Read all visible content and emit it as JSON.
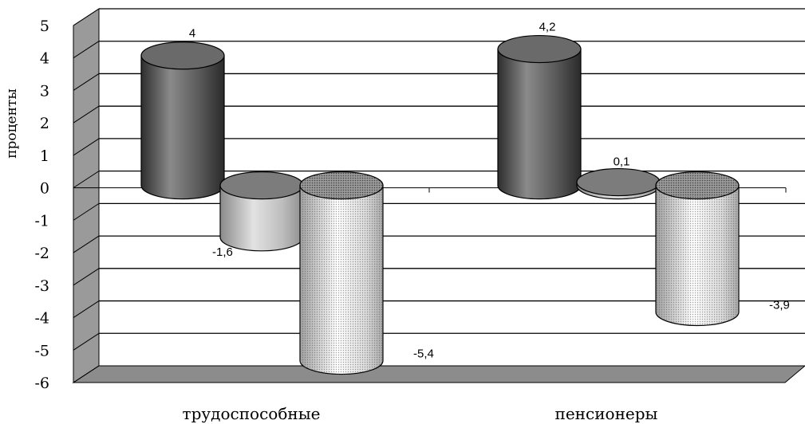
{
  "chart_data": {
    "type": "bar",
    "style": "3d-cylinder",
    "title": "",
    "xlabel": "",
    "ylabel": "проценты",
    "categories": [
      "трудоспособные",
      "пенсионеры"
    ],
    "series": [
      {
        "values": [
          4,
          4.2
        ],
        "labels": [
          "4",
          "4,2"
        ],
        "fill": "dark-gray"
      },
      {
        "values": [
          -1.6,
          0.1
        ],
        "labels": [
          "-1,6",
          "0,1"
        ],
        "fill": "light-gray"
      },
      {
        "values": [
          -5.4,
          -3.9
        ],
        "labels": [
          "-5,4",
          "-3,9"
        ],
        "fill": "dotted"
      }
    ],
    "ylim": [
      -6,
      5
    ],
    "yticks": [
      "5",
      "4",
      "3",
      "2",
      "1",
      "0",
      "-1",
      "-2",
      "-3",
      "-4",
      "-5",
      "-6"
    ],
    "grid": true,
    "legend": "none",
    "colors": {
      "dark": "#5a5a5a",
      "light": "#b4b4b4",
      "dotted": "#e6e6e6",
      "floor": "#8c8c8c",
      "wall": "#9a9a9a"
    }
  }
}
